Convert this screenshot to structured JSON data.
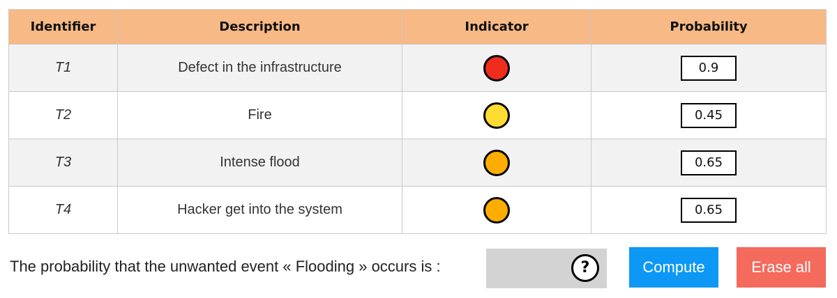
{
  "table": {
    "headers": {
      "identifier": "Identifier",
      "description": "Description",
      "indicator": "Indicator",
      "probability": "Probability"
    },
    "rows": [
      {
        "id": "T1",
        "description": "Defect in the infrastructure",
        "indicator_color": "#f02c1d",
        "probability": "0.9"
      },
      {
        "id": "T2",
        "description": "Fire",
        "indicator_color": "#fedc32",
        "probability": "0.45"
      },
      {
        "id": "T3",
        "description": "Intense flood",
        "indicator_color": "#fdad00",
        "probability": "0.65"
      },
      {
        "id": "T4",
        "description": "Hacker get into the system",
        "indicator_color": "#fdad00",
        "probability": "0.65"
      }
    ]
  },
  "footer": {
    "question_text": "The probability that the unwanted event « Flooding » occurs is :",
    "result_icon": "question-mark-circle-icon",
    "help_glyph": "?",
    "compute_label": "Compute",
    "erase_label": "Erase all"
  },
  "colors": {
    "header_bg": "#f7b985",
    "compute_button": "#0e98f5",
    "erase_button": "#f46a5c",
    "result_box": "#d3d3d3"
  }
}
